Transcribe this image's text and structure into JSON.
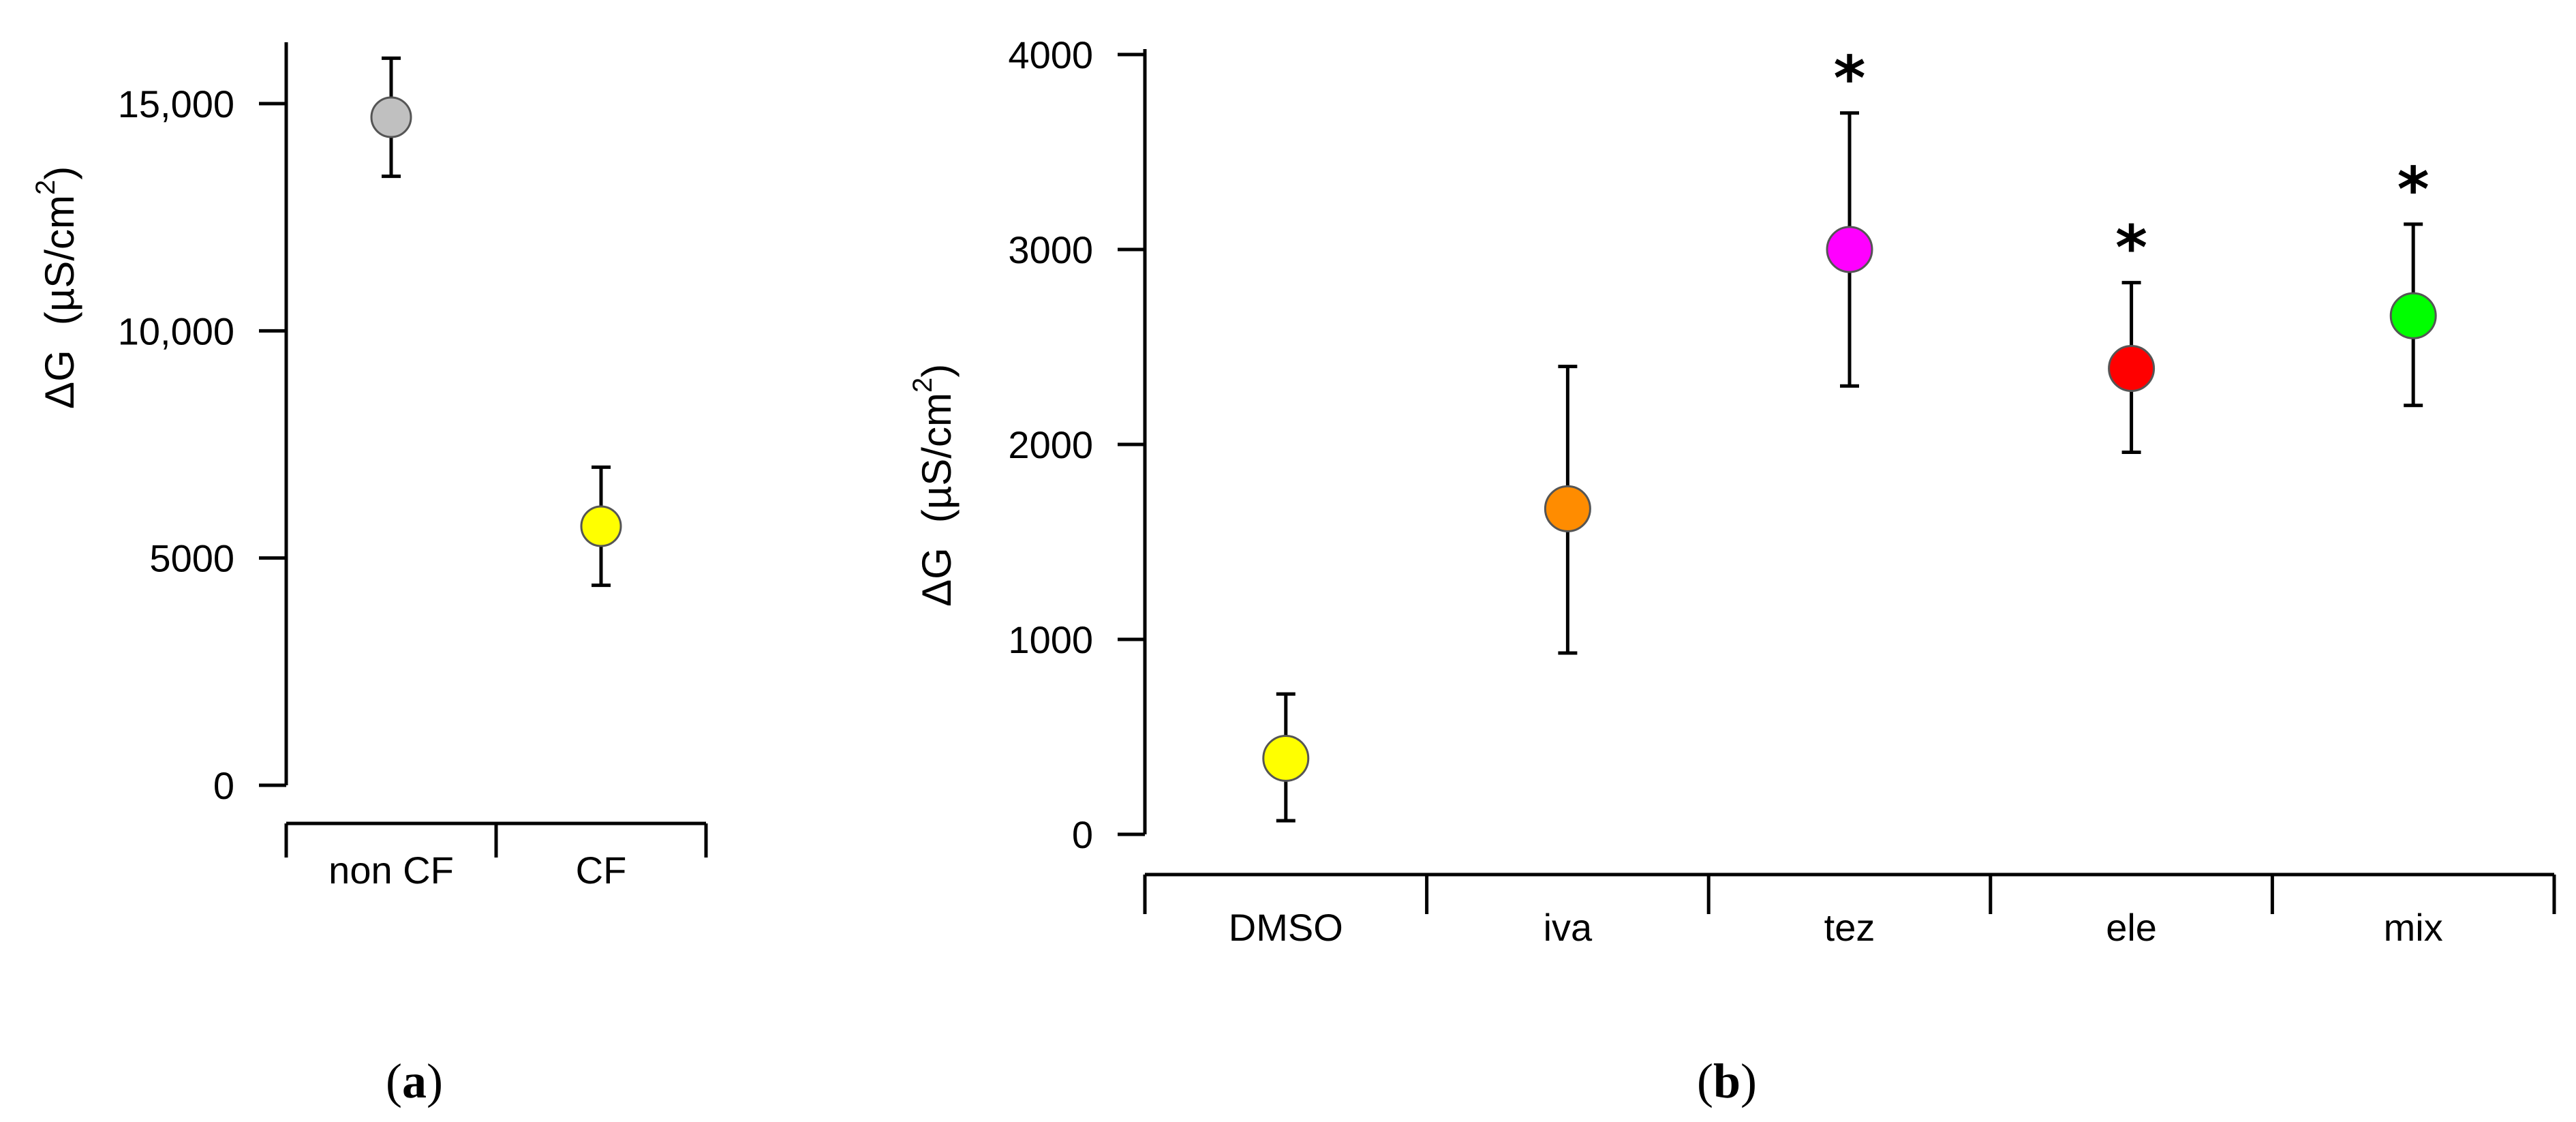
{
  "chart_data": [
    {
      "panel": "a",
      "panel_label": "a",
      "type": "scatter",
      "ylabel": "ΔG (µS/cm2)",
      "ylabel_main": "ΔG",
      "ylabel_unit": "(µS/cm",
      "ylabel_sup": "2",
      "ylabel_close": ")",
      "ylim": [
        0,
        17000
      ],
      "yticks": [
        0,
        5000,
        10000,
        15000
      ],
      "ytick_labels": [
        "0",
        "5000",
        "10,000",
        "15,000"
      ],
      "categories": [
        "non CF",
        "CF"
      ],
      "points": [
        {
          "category": "non CF",
          "value": 14700,
          "err_low": 13400,
          "err_high": 16000,
          "color": "#c0c0c0",
          "significant": false
        },
        {
          "category": "CF",
          "value": 5700,
          "err_low": 4400,
          "err_high": 7000,
          "color": "#ffff00",
          "significant": false
        }
      ]
    },
    {
      "panel": "b",
      "panel_label": "b",
      "type": "scatter",
      "ylabel": "ΔG (µS/cm2)",
      "ylabel_main": "ΔG",
      "ylabel_unit": "(µS/cm",
      "ylabel_sup": "2",
      "ylabel_close": ")",
      "ylim": [
        0,
        4000
      ],
      "yticks": [
        0,
        1000,
        2000,
        3000,
        4000
      ],
      "ytick_labels": [
        "0",
        "1000",
        "2000",
        "3000",
        "4000"
      ],
      "categories": [
        "DMSO",
        "iva",
        "tez",
        "ele",
        "mix"
      ],
      "significance_marker": "*",
      "points": [
        {
          "category": "DMSO",
          "value": 390,
          "err_low": 70,
          "err_high": 720,
          "color": "#ffff00",
          "significant": false
        },
        {
          "category": "iva",
          "value": 1670,
          "err_low": 930,
          "err_high": 2400,
          "color": "#ff8c00",
          "significant": false
        },
        {
          "category": "tez",
          "value": 3000,
          "err_low": 2300,
          "err_high": 3700,
          "color": "#ff00ff",
          "significant": true
        },
        {
          "category": "ele",
          "value": 2390,
          "err_low": 1960,
          "err_high": 2830,
          "color": "#ff0000",
          "significant": true
        },
        {
          "category": "mix",
          "value": 2660,
          "err_low": 2200,
          "err_high": 3130,
          "color": "#00ff00",
          "significant": true
        }
      ]
    }
  ]
}
